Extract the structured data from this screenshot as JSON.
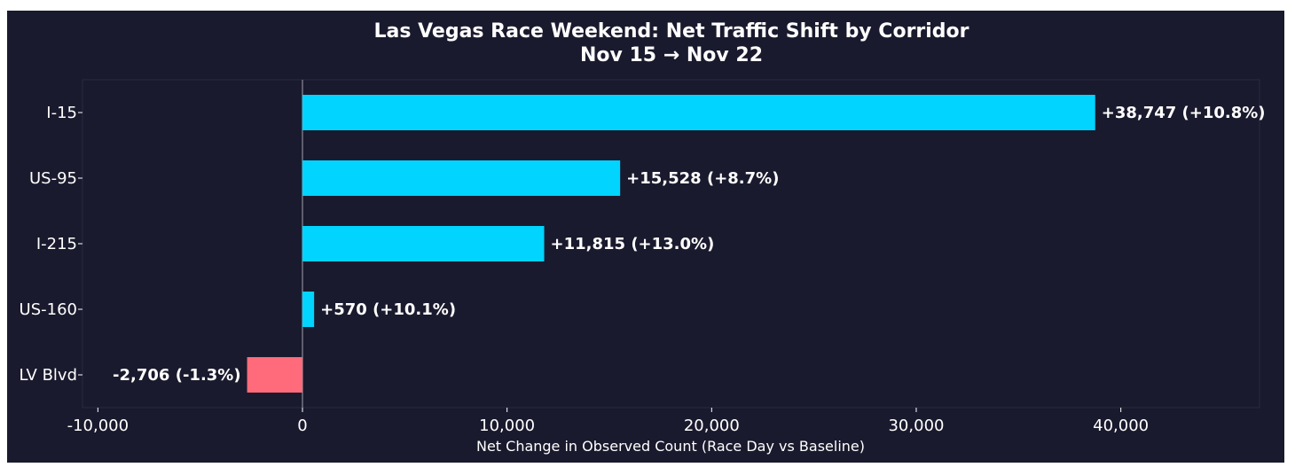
{
  "chart_data": {
    "type": "bar",
    "orientation": "horizontal",
    "title": "Las Vegas Race Weekend: Net Traffic Shift by Corridor",
    "subtitle": "Nov 15 → Nov 22",
    "xlabel": "Net Change in Observed Count (Race Day vs Baseline)",
    "ylabel": "",
    "categories": [
      "I-15",
      "US-95",
      "I-215",
      "US-160",
      "LV Blvd"
    ],
    "values": [
      38747,
      15528,
      11815,
      570,
      -2706
    ],
    "data_labels": [
      "+38,747 (+10.8%)",
      "+15,528 (+8.7%)",
      "+11,815 (+13.0%)",
      "+570 (+10.1%)",
      "-2,706 (-1.3%)"
    ],
    "xlim": [
      -10500,
      46500
    ],
    "xticks": [
      -10000,
      0,
      10000,
      20000,
      30000,
      40000
    ],
    "xtick_labels": [
      "-10,000",
      "0",
      "10,000",
      "20,000",
      "30,000",
      "40,000"
    ],
    "grid": false,
    "colors": {
      "positive": "#00d4ff",
      "negative": "#ff6b7a",
      "background": "#1a1a2e",
      "text": "#ffffff",
      "zero_line": "#8a8a9a"
    }
  }
}
